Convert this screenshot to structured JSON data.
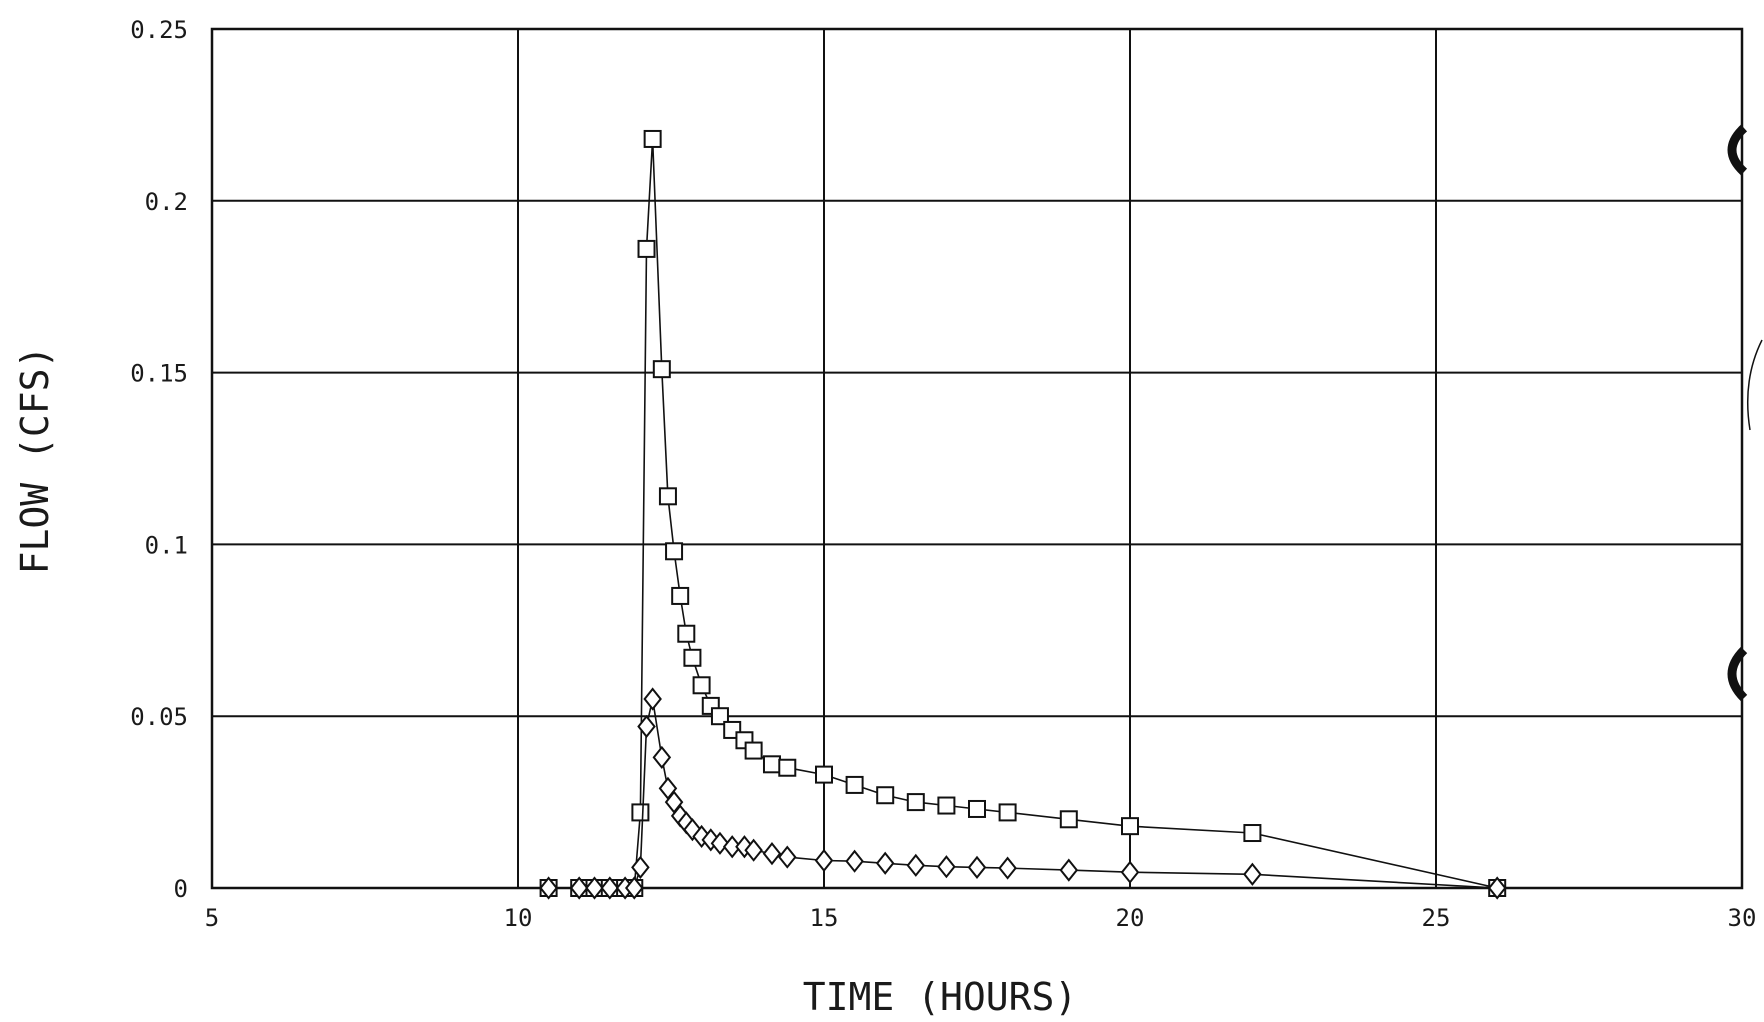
{
  "chart_data": {
    "type": "line",
    "title": "",
    "xlabel": "TIME (HOURS)",
    "ylabel": "FLOW (CFS)",
    "xlim": [
      5,
      30
    ],
    "ylim": [
      0,
      0.25
    ],
    "x_ticks": [
      5,
      10,
      15,
      20,
      25,
      30
    ],
    "y_ticks": [
      0,
      0.05,
      0.1,
      0.15,
      0.2,
      0.25
    ],
    "x_tick_labels": [
      "5",
      "10",
      "15",
      "20",
      "25",
      "30"
    ],
    "y_tick_labels": [
      "0",
      "0.05",
      "0.1",
      "0.15",
      "0.2",
      "0.25"
    ],
    "grid": true,
    "legend": "none",
    "series": [
      {
        "marker": "square",
        "points": [
          [
            10.5,
            0
          ],
          [
            11.0,
            0
          ],
          [
            11.25,
            0
          ],
          [
            11.5,
            0
          ],
          [
            11.75,
            0
          ],
          [
            11.9,
            0
          ],
          [
            12.0,
            0.022
          ],
          [
            12.1,
            0.186
          ],
          [
            12.2,
            0.218
          ],
          [
            12.35,
            0.151
          ],
          [
            12.45,
            0.114
          ],
          [
            12.55,
            0.098
          ],
          [
            12.65,
            0.085
          ],
          [
            12.75,
            0.074
          ],
          [
            12.85,
            0.067
          ],
          [
            13.0,
            0.059
          ],
          [
            13.15,
            0.053
          ],
          [
            13.3,
            0.05
          ],
          [
            13.5,
            0.046
          ],
          [
            13.7,
            0.043
          ],
          [
            13.85,
            0.04
          ],
          [
            14.15,
            0.036
          ],
          [
            14.4,
            0.035
          ],
          [
            15.0,
            0.033
          ],
          [
            15.5,
            0.03
          ],
          [
            16.0,
            0.027
          ],
          [
            16.5,
            0.025
          ],
          [
            17.0,
            0.024
          ],
          [
            17.5,
            0.023
          ],
          [
            18.0,
            0.022
          ],
          [
            19.0,
            0.02
          ],
          [
            20.0,
            0.018
          ],
          [
            22.0,
            0.016
          ],
          [
            26.0,
            0
          ]
        ]
      },
      {
        "marker": "diamond",
        "points": [
          [
            10.5,
            0
          ],
          [
            11.0,
            0
          ],
          [
            11.25,
            0
          ],
          [
            11.5,
            0
          ],
          [
            11.75,
            0
          ],
          [
            11.9,
            0
          ],
          [
            12.0,
            0.006
          ],
          [
            12.1,
            0.047
          ],
          [
            12.2,
            0.055
          ],
          [
            12.35,
            0.038
          ],
          [
            12.45,
            0.029
          ],
          [
            12.55,
            0.025
          ],
          [
            12.65,
            0.021
          ],
          [
            12.75,
            0.019
          ],
          [
            12.85,
            0.017
          ],
          [
            13.0,
            0.015
          ],
          [
            13.15,
            0.014
          ],
          [
            13.3,
            0.013
          ],
          [
            13.5,
            0.012
          ],
          [
            13.7,
            0.012
          ],
          [
            13.85,
            0.011
          ],
          [
            14.15,
            0.01
          ],
          [
            14.4,
            0.009
          ],
          [
            15.0,
            0.008
          ],
          [
            15.5,
            0.0078
          ],
          [
            16.0,
            0.0072
          ],
          [
            16.5,
            0.0066
          ],
          [
            17.0,
            0.0062
          ],
          [
            17.5,
            0.006
          ],
          [
            18.0,
            0.0058
          ],
          [
            19.0,
            0.0052
          ],
          [
            20.0,
            0.0046
          ],
          [
            22.0,
            0.004
          ],
          [
            26.0,
            0
          ]
        ]
      }
    ]
  }
}
